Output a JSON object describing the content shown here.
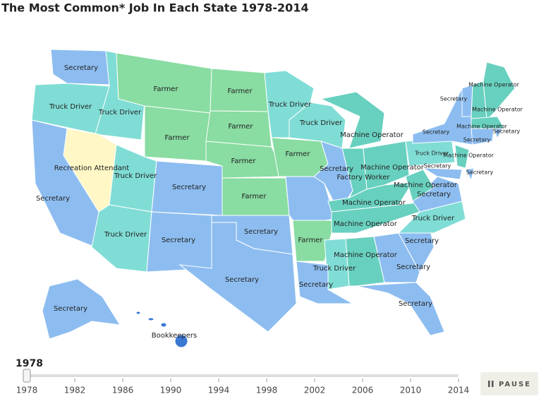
{
  "title": "The Most Common* Job In Each State 1978-2014",
  "map": {
    "states": [
      {
        "label": "Secretary",
        "color": "#8dbdf0"
      },
      {
        "label": "Truck Driver",
        "color": "#80ddd6"
      },
      {
        "label": "Truck Driver",
        "color": "#80ddd6"
      },
      {
        "label": "Farmer",
        "color": "#89dca2"
      },
      {
        "label": "Farmer",
        "color": "#89dca2"
      },
      {
        "label": "Farmer",
        "color": "#89dca2"
      },
      {
        "label": "Farmer",
        "color": "#89dca2"
      },
      {
        "label": "Recreation Attendant",
        "color": "#fff7c6"
      },
      {
        "label": "Secretary",
        "color": "#8dbdf0"
      },
      {
        "label": "Truck Driver",
        "color": "#80ddd6"
      },
      {
        "label": "Secretary",
        "color": "#8dbdf0"
      },
      {
        "label": "Farmer",
        "color": "#89dca2"
      },
      {
        "label": "Farmer",
        "color": "#89dca2"
      },
      {
        "label": "Truck Driver",
        "color": "#80ddd6"
      },
      {
        "label": "Secretary",
        "color": "#8dbdf0"
      },
      {
        "label": "Secretary",
        "color": "#8dbdf0"
      },
      {
        "label": "Secretary",
        "color": "#8dbdf0"
      },
      {
        "label": "Truck Driver",
        "color": "#80ddd6"
      },
      {
        "label": "Farmer",
        "color": "#89dca2"
      },
      {
        "label": "Truck Driver",
        "color": "#80ddd6"
      },
      {
        "label": "Machine Operator",
        "color": "#68d0bf"
      },
      {
        "label": "Secretary",
        "color": "#8dbdf0"
      },
      {
        "label": "Factory Worker",
        "color": "#68d0bf"
      },
      {
        "label": "Machine Operator",
        "color": "#68d0bf"
      },
      {
        "label": "Machine Operator",
        "color": "#68d0bf"
      },
      {
        "label": "Farmer",
        "color": "#89dca2"
      },
      {
        "label": "Machine Operator",
        "color": "#68d0bf"
      },
      {
        "label": "Machine Operator",
        "color": "#68d0bf"
      },
      {
        "label": "Truck Driver",
        "color": "#80ddd6"
      },
      {
        "label": "Secretary",
        "color": "#8dbdf0"
      },
      {
        "label": "Secretary",
        "color": "#8dbdf0"
      },
      {
        "label": "Secretary",
        "color": "#8dbdf0"
      },
      {
        "label": "Truck Driver",
        "color": "#80ddd6"
      },
      {
        "label": "Secretary",
        "color": "#8dbdf0"
      },
      {
        "label": "Machine Operator",
        "color": "#68d0bf"
      },
      {
        "label": "Secretary",
        "color": "#8dbdf0"
      },
      {
        "label": "Truck Driver",
        "color": "#80ddd6"
      },
      {
        "label": "Secretary",
        "color": "#8dbdf0"
      },
      {
        "label": "Machine Operator",
        "color": "#68d0bf"
      },
      {
        "label": "Secretary",
        "color": "#8dbdf0"
      },
      {
        "label": "Secretary",
        "color": "#8dbdf0"
      },
      {
        "label": "Secretary",
        "color": "#8dbdf0"
      },
      {
        "label": "Secretary",
        "color": "#8dbdf0"
      },
      {
        "label": "Machine Operator",
        "color": "#68d0bf"
      },
      {
        "label": "Machine Operator",
        "color": "#68d0bf"
      },
      {
        "label": "Machine Operator",
        "color": "#68d0bf"
      },
      {
        "label": "Secretary",
        "color": "#8dbdf0"
      },
      {
        "label": "Secretary",
        "color": "#8dbdf0"
      },
      {
        "label": "Bookkeepers",
        "color": "#3b78d2"
      },
      {
        "label": null,
        "color": "#8dbdf0"
      }
    ]
  },
  "slider": {
    "value": 1978,
    "range": [
      1978,
      2014
    ],
    "ticks": [
      1978,
      1982,
      1986,
      1990,
      1994,
      1998,
      2002,
      2006,
      2010,
      2014
    ]
  },
  "button": {
    "label": "PAUSE"
  }
}
